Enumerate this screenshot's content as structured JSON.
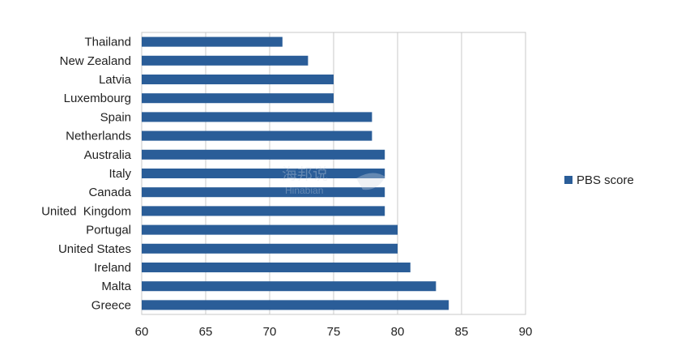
{
  "chart_data": {
    "type": "bar",
    "orientation": "horizontal",
    "categories": [
      "Thailand",
      "New Zealand",
      "Latvia",
      "Luxembourg",
      "Spain",
      "Netherlands",
      "Australia",
      "Italy",
      "Canada",
      "United  Kingdom",
      "Portugal",
      "United States",
      "Ireland",
      "Malta",
      "Greece"
    ],
    "series": [
      {
        "name": "PBS score",
        "values": [
          71,
          73,
          75,
          75,
          78,
          78,
          79,
          79,
          79,
          79,
          80,
          80,
          81,
          83,
          84
        ],
        "color": "#2a5d98"
      }
    ],
    "xlim": [
      60,
      90
    ],
    "xticks": [
      "60",
      "65",
      "70",
      "75",
      "80",
      "85",
      "90"
    ],
    "title": "",
    "xlabel": "",
    "ylabel": "",
    "grid": "vertical",
    "legend_position": "right"
  },
  "watermark": {
    "text_cn": "海邦说",
    "text_en": "Hinabian"
  }
}
